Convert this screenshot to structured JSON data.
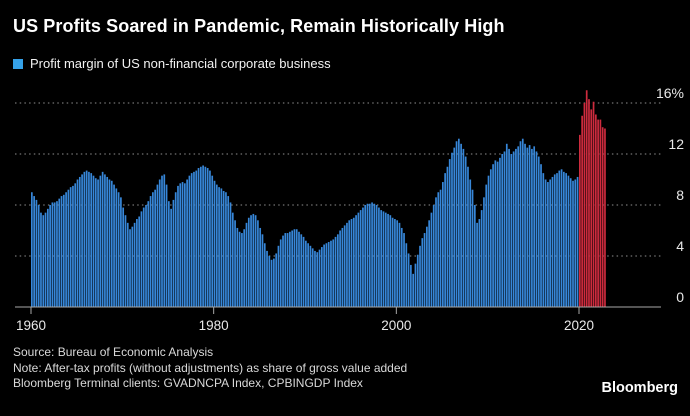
{
  "header": {
    "title": "US Profits Soared in Pandemic, Remain Historically High"
  },
  "legend": {
    "label": "Profit margin of US non-financial corporate business",
    "swatch_color": "#35a1e8"
  },
  "footer": {
    "source": "Source: Bureau of Economic Analysis",
    "note": "Note: After-tax profits (without adjustments) as share of gross value added",
    "terminal": "Bloomberg Terminal clients: GVADNCPA Index, CPBINGDP Index",
    "logo": "Bloomberg"
  },
  "chart_data": {
    "type": "bar",
    "title": "Profit margin of US non-financial corporate business",
    "unit": "%",
    "frequency": "quarterly",
    "start": "1960Q1",
    "end": "2022Q4",
    "ylim": [
      0,
      17.5
    ],
    "grid": "dotted-horizontal",
    "legend_position": "top-left",
    "y_ticks": [
      {
        "value": 16,
        "label": "16%"
      },
      {
        "value": 12,
        "label": "12"
      },
      {
        "value": 8,
        "label": "8"
      },
      {
        "value": 4,
        "label": "4"
      },
      {
        "value": 0,
        "label": "0"
      }
    ],
    "x_ticks": [
      {
        "year": 1960,
        "label": "1960"
      },
      {
        "year": 1980,
        "label": "1980"
      },
      {
        "year": 2000,
        "label": "2000"
      },
      {
        "year": 2020,
        "label": "2020"
      }
    ],
    "colors": {
      "pre_pandemic_bar": "#3787d9",
      "pandemic_bar": "#ce2b3e",
      "gridline": "#8f8f8f",
      "axis": "#a8a8a8",
      "tick_label": "#e8e8e8",
      "background": "#000000"
    },
    "pandemic_highlight_start": "2020Q1",
    "pandemic_highlight_start_index": 240,
    "values": [
      9.0,
      8.7,
      8.4,
      8.0,
      7.4,
      7.2,
      7.4,
      7.7,
      8.0,
      8.2,
      8.2,
      8.3,
      8.5,
      8.7,
      8.8,
      9.0,
      9.2,
      9.4,
      9.5,
      9.7,
      10.0,
      10.2,
      10.4,
      10.6,
      10.7,
      10.6,
      10.5,
      10.3,
      10.1,
      10.0,
      10.3,
      10.6,
      10.4,
      10.2,
      10.0,
      9.9,
      9.6,
      9.3,
      9.0,
      8.6,
      7.8,
      7.2,
      6.6,
      6.1,
      6.3,
      6.6,
      6.9,
      7.1,
      7.5,
      7.8,
      8.0,
      8.3,
      8.7,
      9.0,
      9.2,
      9.6,
      10.0,
      10.3,
      10.4,
      9.6,
      8.3,
      7.7,
      8.4,
      9.0,
      9.5,
      9.7,
      9.8,
      9.7,
      10.0,
      10.3,
      10.5,
      10.6,
      10.7,
      10.9,
      11.0,
      11.1,
      11.0,
      10.9,
      10.7,
      10.3,
      9.9,
      9.6,
      9.4,
      9.3,
      9.1,
      9.0,
      8.7,
      8.2,
      7.4,
      6.8,
      6.2,
      5.9,
      5.8,
      6.1,
      6.6,
      7.0,
      7.2,
      7.3,
      7.2,
      6.8,
      6.2,
      5.7,
      5.0,
      4.4,
      4.0,
      3.7,
      3.8,
      4.2,
      4.8,
      5.3,
      5.6,
      5.8,
      5.8,
      5.9,
      6.0,
      6.1,
      6.1,
      5.9,
      5.7,
      5.5,
      5.2,
      5.0,
      4.8,
      4.6,
      4.4,
      4.3,
      4.5,
      4.7,
      4.9,
      5.0,
      5.1,
      5.2,
      5.3,
      5.5,
      5.7,
      6.0,
      6.2,
      6.4,
      6.6,
      6.8,
      6.9,
      7.0,
      7.2,
      7.4,
      7.6,
      7.8,
      8.0,
      8.1,
      8.1,
      8.2,
      8.1,
      8.0,
      7.8,
      7.6,
      7.5,
      7.4,
      7.3,
      7.2,
      7.0,
      6.9,
      6.8,
      6.6,
      6.2,
      5.8,
      5.0,
      4.2,
      3.3,
      2.6,
      3.4,
      4.1,
      4.8,
      5.4,
      5.8,
      6.3,
      6.8,
      7.4,
      8.0,
      8.6,
      9.0,
      9.2,
      9.8,
      10.5,
      11.0,
      11.6,
      12.1,
      12.5,
      13.0,
      13.2,
      12.8,
      12.4,
      11.8,
      11.0,
      10.0,
      9.2,
      8.0,
      6.6,
      6.9,
      7.6,
      8.6,
      9.6,
      10.3,
      10.8,
      11.2,
      11.5,
      11.4,
      11.7,
      12.0,
      12.2,
      12.8,
      12.4,
      12.0,
      12.2,
      12.4,
      12.6,
      13.0,
      13.2,
      12.8,
      12.5,
      12.7,
      12.4,
      12.6,
      12.2,
      11.8,
      11.2,
      10.5,
      10.0,
      9.8,
      10.0,
      10.2,
      10.4,
      10.5,
      10.7,
      10.8,
      10.6,
      10.5,
      10.3,
      10.1,
      9.9,
      10.0,
      10.2,
      13.5,
      15.0,
      16.0,
      17.0,
      16.3,
      15.5,
      16.1,
      15.1,
      14.7,
      14.7,
      14.1,
      14.0
    ]
  }
}
